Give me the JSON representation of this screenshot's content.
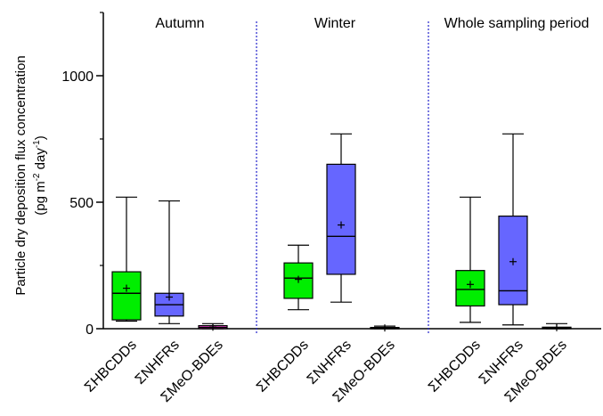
{
  "chart_data": {
    "type": "box",
    "ylabel_line1": "Particle dry deposition flux concentration",
    "ylabel_line2_prefix": "(pg m",
    "ylabel_sup1": "-2",
    "ylabel_mid": " day",
    "ylabel_sup2": "-1",
    "ylabel_suffix": ")",
    "ylim": [
      0,
      1250
    ],
    "yticks": [
      0,
      500,
      1000
    ],
    "ytick_labels": [
      "0",
      "500",
      "1000"
    ],
    "grid": false,
    "colors": {
      "ΣHBCDDs": "#00ee00",
      "ΣNHFRs": "#6666ff",
      "ΣMeO-BDEs": "#ff44dd",
      "separator": "#2222cc"
    },
    "groups": [
      {
        "title": "Autumn",
        "boxes": [
          {
            "category": "ΣHBCDDs",
            "min": 30,
            "q1": 35,
            "median": 140,
            "q3": 225,
            "max": 520,
            "mean": 160
          },
          {
            "category": "ΣNHFRs",
            "min": 20,
            "q1": 50,
            "median": 95,
            "q3": 140,
            "max": 505,
            "mean": 125
          },
          {
            "category": "ΣMeO-BDEs",
            "min": 0,
            "q1": 0,
            "median": 5,
            "q3": 12,
            "max": 20,
            "mean": 6
          }
        ]
      },
      {
        "title": "Winter",
        "boxes": [
          {
            "category": "ΣHBCDDs",
            "min": 75,
            "q1": 120,
            "median": 200,
            "q3": 260,
            "max": 330,
            "mean": 195
          },
          {
            "category": "ΣNHFRs",
            "min": 105,
            "q1": 215,
            "median": 365,
            "q3": 650,
            "max": 770,
            "mean": 410
          },
          {
            "category": "ΣMeO-BDEs",
            "min": 0,
            "q1": 0,
            "median": 3,
            "q3": 5,
            "max": 10,
            "mean": 3
          }
        ]
      },
      {
        "title": "Whole sampling period",
        "boxes": [
          {
            "category": "ΣHBCDDs",
            "min": 25,
            "q1": 90,
            "median": 155,
            "q3": 230,
            "max": 520,
            "mean": 175
          },
          {
            "category": "ΣNHFRs",
            "min": 15,
            "q1": 95,
            "median": 150,
            "q3": 445,
            "max": 770,
            "mean": 265
          },
          {
            "category": "ΣMeO-BDEs",
            "min": 0,
            "q1": 0,
            "median": 3,
            "q3": 6,
            "max": 20,
            "mean": 4
          }
        ]
      }
    ]
  }
}
